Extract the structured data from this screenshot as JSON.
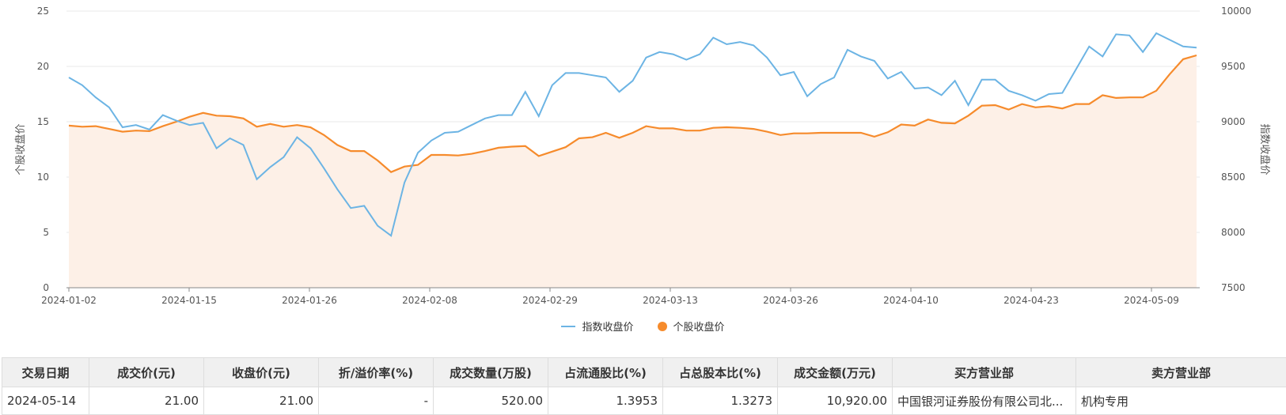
{
  "chart_data": {
    "type": "line",
    "x_tick_labels": [
      "2024-01-02",
      "2024-01-15",
      "2024-01-26",
      "2024-02-08",
      "2024-02-29",
      "2024-03-13",
      "2024-03-26",
      "2024-04-10",
      "2024-04-23",
      "2024-05-09"
    ],
    "y_left": {
      "label": "个股收盘价",
      "range": [
        0,
        25
      ],
      "ticks": [
        0,
        5,
        10,
        15,
        20,
        25
      ]
    },
    "y_right": {
      "label": "指数收盘价",
      "range": [
        7500,
        10000
      ],
      "ticks": [
        7500,
        8000,
        8500,
        9000,
        9500,
        10000
      ]
    },
    "series": [
      {
        "name": "指数收盘价",
        "axis": "right",
        "color": "#6cb4e4",
        "values": [
          9400,
          9330,
          9220,
          9130,
          8950,
          8970,
          8930,
          9060,
          9010,
          8970,
          8990,
          8760,
          8850,
          8790,
          8480,
          8590,
          8680,
          8860,
          8760,
          8580,
          8390,
          8220,
          8240,
          8060,
          7970,
          8450,
          8720,
          8830,
          8900,
          8910,
          8970,
          9030,
          9060,
          9060,
          9270,
          9050,
          9330,
          9440,
          9440,
          9420,
          9400,
          9270,
          9370,
          9580,
          9630,
          9610,
          9560,
          9610,
          9760,
          9700,
          9720,
          9690,
          9580,
          9420,
          9450,
          9230,
          9340,
          9400,
          9650,
          9590,
          9550,
          9390,
          9450,
          9300,
          9310,
          9240,
          9370,
          9150,
          9380,
          9380,
          9280,
          9240,
          9190,
          9250,
          9260,
          9470,
          9680,
          9590,
          9790,
          9780,
          9630,
          9800,
          9740,
          9680,
          9670
        ]
      },
      {
        "name": "个股收盘价",
        "axis": "left",
        "color": "#f68b2c",
        "values": [
          14.65,
          14.55,
          14.6,
          14.35,
          14.1,
          14.2,
          14.15,
          14.6,
          15.0,
          15.45,
          15.8,
          15.55,
          15.5,
          15.3,
          14.55,
          14.8,
          14.55,
          14.7,
          14.5,
          13.8,
          12.9,
          12.35,
          12.35,
          11.5,
          10.45,
          10.95,
          11.1,
          12.0,
          12.0,
          11.95,
          12.1,
          12.35,
          12.65,
          12.75,
          12.8,
          11.9,
          12.3,
          12.7,
          13.5,
          13.6,
          14.0,
          13.55,
          14.0,
          14.6,
          14.4,
          14.4,
          14.2,
          14.2,
          14.45,
          14.5,
          14.45,
          14.35,
          14.1,
          13.8,
          13.95,
          13.95,
          14.0,
          14.0,
          14.0,
          14.0,
          13.65,
          14.05,
          14.75,
          14.65,
          15.2,
          14.9,
          14.85,
          15.55,
          16.45,
          16.5,
          16.1,
          16.6,
          16.3,
          16.4,
          16.2,
          16.6,
          16.6,
          17.4,
          17.15,
          17.2,
          17.2,
          17.8,
          19.3,
          20.65,
          21.0
        ]
      }
    ],
    "legend_position": "bottom-center",
    "grid": true
  },
  "table": {
    "headers": [
      "交易日期",
      "成交价(元)",
      "收盘价(元)",
      "折/溢价率(%)",
      "成交数量(万股)",
      "占流通股比(%)",
      "占总股本比(%)",
      "成交金额(万元)",
      "买方营业部",
      "卖方营业部"
    ],
    "rows": [
      [
        "2024-05-14",
        "21.00",
        "21.00",
        "-",
        "520.00",
        "1.3953",
        "1.3273",
        "10,920.00",
        "中国银河证券股份有限公司北...",
        "机构专用"
      ]
    ]
  },
  "colors": {
    "index_line": "#6cb4e4",
    "stock_line": "#f68b2c",
    "stock_fill": "#fdf0e7",
    "grid": "#e8e8e8"
  }
}
